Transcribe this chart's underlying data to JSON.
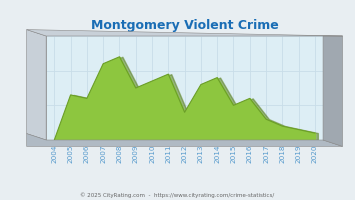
{
  "title": "Montgomery Violent Crime",
  "years": [
    2004,
    2005,
    2006,
    2007,
    2008,
    2009,
    2010,
    2011,
    2012,
    2013,
    2014,
    2015,
    2016,
    2017,
    2018,
    2019,
    2020
  ],
  "values": [
    0,
    6.5,
    6.0,
    11.0,
    12.0,
    7.5,
    8.5,
    9.5,
    4.0,
    8.0,
    9.0,
    5.0,
    6.0,
    3.0,
    2.0,
    1.5,
    1.0
  ],
  "ylim": [
    0,
    15
  ],
  "yticks": [
    0,
    5,
    10,
    15
  ],
  "fill_color": "#8dc63f",
  "fill_color_dark": "#6b9e28",
  "plot_bg": "#ddeef5",
  "grid_color": "#c8dde8",
  "title_color": "#1a6db5",
  "tick_color": "#5599cc",
  "footer_text": "© 2025 CityRating.com  -  https://www.cityrating.com/crime-statistics/",
  "footer_color": "#666666",
  "wall_light": "#c8d0d8",
  "wall_dark": "#a0a8b0",
  "wall_mid": "#b0bac4",
  "fig_bg": "#e8eef2",
  "shadow_green": "#5a8020"
}
